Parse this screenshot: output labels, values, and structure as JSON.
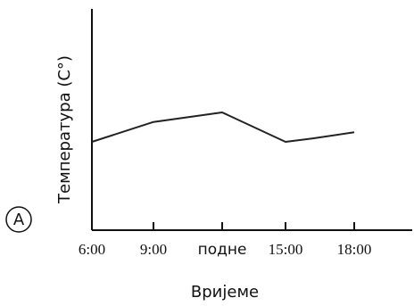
{
  "panel_label": "A",
  "chart_data": {
    "type": "line",
    "title": "",
    "xlabel": "Вријеме",
    "ylabel": "Температура (C°)",
    "categories": [
      "6:00",
      "9:00",
      "подне",
      "15:00",
      "18:00"
    ],
    "series": [
      {
        "values": [
          {
            "x": 0,
            "y": 0.0
          },
          {
            "x": 1,
            "y": 0.23
          },
          {
            "x": 2,
            "y": 0.34
          },
          {
            "x": 3,
            "y": 0.0
          },
          {
            "x": 3.4,
            "y": 0.04
          },
          {
            "x": 4,
            "y": 0.11
          }
        ]
      }
    ],
    "grid": false,
    "legend": "none",
    "line_color": "#222222"
  }
}
